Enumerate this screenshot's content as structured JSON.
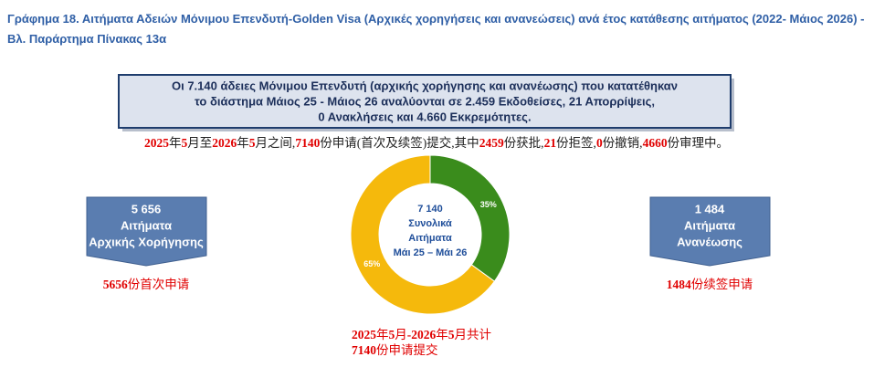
{
  "title": "Γράφημα 18.  Αιτήματα Αδειών Μόνιμου Επενδυτή-Golden Visa (Αρχικές χορηγήσεις και ανανεώσεις) ανά έτος κατάθεσης αιτήματος (2022- Μάιος 2026) - Βλ. Παράρτημα  Πίνακας 13α",
  "summary": [
    "Οι 7.140 άδειες Μόνιμου Επενδυτή (αρχικής χορήγησης και ανανέωσης) που κατατέθηκαν",
    "το διάστημα Μάιος 25 - Μάιος 26 αναλύονται σε 2.459 Εκδοθείσες, 21 Απορρίψεις,",
    "0 Ανακλήσεις και 4.660 Εκκρεμότητες."
  ],
  "note_cn": [
    {
      "text": "2025",
      "color": "#e00000",
      "bold": true
    },
    {
      "text": "年",
      "color": "#222222",
      "bold": false
    },
    {
      "text": "5",
      "color": "#e00000",
      "bold": true
    },
    {
      "text": "月至",
      "color": "#222222",
      "bold": false
    },
    {
      "text": "2026",
      "color": "#e00000",
      "bold": true
    },
    {
      "text": "年",
      "color": "#222222",
      "bold": false
    },
    {
      "text": "5",
      "color": "#e00000",
      "bold": true
    },
    {
      "text": "月之间,",
      "color": "#222222",
      "bold": false
    },
    {
      "text": "7140",
      "color": "#e00000",
      "bold": true
    },
    {
      "text": "份申请(首次及续签)提交,其中",
      "color": "#222222",
      "bold": false
    },
    {
      "text": "2459",
      "color": "#e00000",
      "bold": true
    },
    {
      "text": "份获批,",
      "color": "#222222",
      "bold": false
    },
    {
      "text": "21",
      "color": "#e00000",
      "bold": true
    },
    {
      "text": "份拒签,",
      "color": "#222222",
      "bold": false
    },
    {
      "text": "0",
      "color": "#e00000",
      "bold": true
    },
    {
      "text": "份撤销,",
      "color": "#222222",
      "bold": false
    },
    {
      "text": "4660",
      "color": "#e00000",
      "bold": true
    },
    {
      "text": "份审理中。",
      "color": "#222222",
      "bold": false
    }
  ],
  "left_box": [
    "5 656",
    "Αιτήματα",
    "Αρχικής Χορήγησης"
  ],
  "right_box": [
    "1 484",
    "Αιτήματα",
    "Ανανέωσης"
  ],
  "left_note": [
    {
      "text": "5656",
      "color": "#e00000",
      "bold": true
    },
    {
      "text": "份首次申请",
      "color": "#e00000",
      "bold": false
    }
  ],
  "right_note": [
    {
      "text": "1484",
      "color": "#e00000",
      "bold": true
    },
    {
      "text": "份续签申请",
      "color": "#e00000",
      "bold": false
    }
  ],
  "bottom_note": [
    [
      {
        "text": "2025",
        "color": "#e00000",
        "bold": true
      },
      {
        "text": "年",
        "color": "#e00000",
        "bold": false
      },
      {
        "text": "5",
        "color": "#e00000",
        "bold": true
      },
      {
        "text": "月",
        "color": "#e00000",
        "bold": false
      },
      {
        "text": "-2026",
        "color": "#e00000",
        "bold": true
      },
      {
        "text": "年",
        "color": "#e00000",
        "bold": false
      },
      {
        "text": "5",
        "color": "#e00000",
        "bold": true
      },
      {
        "text": "月共计",
        "color": "#e00000",
        "bold": false
      }
    ],
    [
      {
        "text": "7140",
        "color": "#e00000",
        "bold": true
      },
      {
        "text": "份申请提交",
        "color": "#e00000",
        "bold": false
      }
    ]
  ],
  "chart_data": {
    "type": "pie",
    "donut": true,
    "values": [
      35,
      65
    ],
    "value_labels": [
      "35%",
      "65%"
    ],
    "colors": [
      "#3a8c1c",
      "#f5b90c"
    ],
    "center_text": [
      "7 140",
      "Συνολικά",
      "Αιτήματα",
      "Μάι 25 – Μάι 26"
    ]
  }
}
